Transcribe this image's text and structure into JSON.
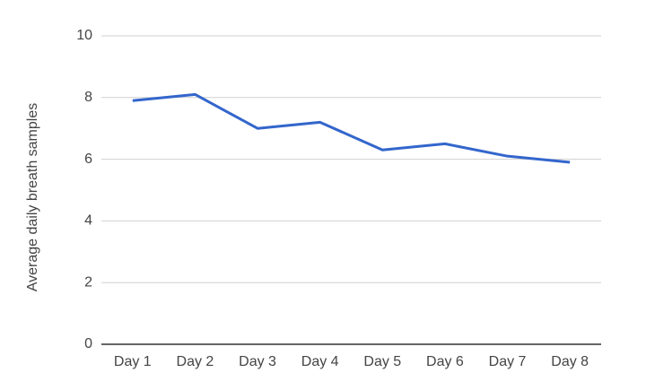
{
  "chart_data": {
    "type": "line",
    "y_label": "Average daily breath samples",
    "categories": [
      "Day 1",
      "Day 2",
      "Day 3",
      "Day 4",
      "Day 5",
      "Day 6",
      "Day 7",
      "Day 8"
    ],
    "series": [
      {
        "name": "Average daily breath samples",
        "color": "#3366cc",
        "values": [
          7.9,
          8.1,
          7.0,
          7.2,
          6.3,
          6.5,
          6.1,
          5.9
        ]
      }
    ],
    "ylim": [
      0,
      10
    ],
    "yticks": [
      0,
      2,
      4,
      6,
      8,
      10
    ],
    "grid": true
  }
}
